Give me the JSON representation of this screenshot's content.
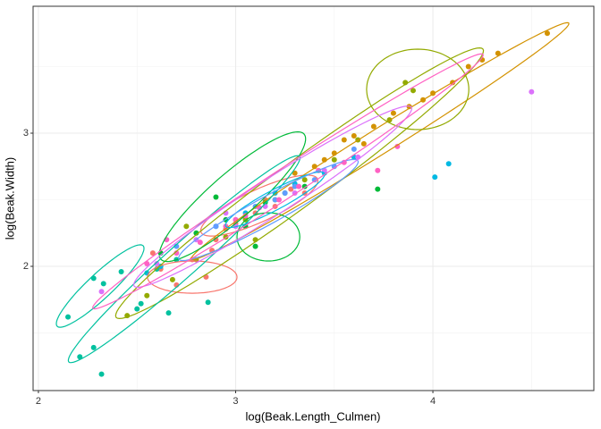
{
  "chart_data": {
    "type": "scatter",
    "x_label": "log(Beak.Length_Culmen)",
    "y_label": "log(Beak.Width)",
    "xlim": [
      1.973,
      4.816
    ],
    "ylim": [
      1.067,
      3.953
    ],
    "xticks": [
      2,
      3,
      4
    ],
    "yticks": [
      2,
      3
    ],
    "grid": true,
    "series": [
      {
        "color": "#F8766D",
        "x": [
          2.62,
          2.7,
          2.78,
          2.85,
          2.9,
          2.95,
          3.0,
          3.05,
          3.1,
          3.15,
          3.2,
          3.28,
          2.58,
          2.88,
          3.35
        ],
        "y": [
          1.98,
          1.86,
          2.05,
          1.92,
          2.2,
          2.28,
          2.32,
          2.36,
          2.4,
          2.5,
          2.45,
          2.58,
          2.1,
          2.12,
          2.55
        ],
        "ellipses": [
          {
            "center": [
              2.78,
              1.919
            ],
            "u": [
              0.227,
              0
            ],
            "v": [
              0,
              0.121
            ]
          },
          {
            "center": [
              3.12,
              2.456
            ],
            "u": [
              0.295,
              0.201
            ],
            "v": [
              0.034,
              -0.109
            ]
          }
        ]
      },
      {
        "color": "#D39200",
        "x": [
          3.3,
          3.4,
          3.5,
          3.55,
          3.6,
          3.7,
          3.8,
          3.88,
          3.95,
          4.0,
          4.1,
          4.18,
          4.25,
          4.33,
          4.58,
          3.65,
          3.45
        ],
        "y": [
          2.7,
          2.75,
          2.85,
          2.95,
          2.98,
          3.05,
          3.15,
          3.2,
          3.25,
          3.3,
          3.38,
          3.5,
          3.55,
          3.6,
          3.75,
          2.92,
          2.8
        ],
        "ellipses": [
          {
            "center": [
              3.732,
              2.94
            ],
            "u": [
              0.957,
              0.886
            ],
            "v": [
              0.034,
              -0.08
            ]
          }
        ]
      },
      {
        "color": "#93AA00",
        "x": [
          2.45,
          2.55,
          2.68,
          2.8,
          2.95,
          3.05,
          3.2,
          3.35,
          3.5,
          3.62,
          3.78,
          3.86,
          3.9,
          2.75,
          3.1
        ],
        "y": [
          1.63,
          1.78,
          1.9,
          2.05,
          2.22,
          2.35,
          2.5,
          2.65,
          2.8,
          2.95,
          3.1,
          3.38,
          3.32,
          2.3,
          2.2
        ],
        "ellipses": [
          {
            "center": [
              3.324,
              2.624
            ],
            "u": [
              0.93,
              1.007
            ],
            "v": [
              0.067,
              -0.136
            ]
          },
          {
            "center": [
              3.923,
              3.329
            ],
            "u": [
              0.259,
              0
            ],
            "v": [
              0,
              0.302
            ]
          }
        ]
      },
      {
        "color": "#00BA38",
        "x": [
          2.62,
          2.8,
          2.95,
          3.05,
          3.15,
          3.25,
          3.35,
          3.72,
          2.9,
          3.1
        ],
        "y": [
          2.1,
          2.25,
          2.35,
          2.3,
          2.48,
          2.55,
          2.6,
          2.58,
          2.52,
          2.15
        ],
        "ellipses": [
          {
            "center": [
              2.984,
              2.523
            ],
            "u": [
              0.363,
              0.47
            ],
            "v": [
              0.075,
              -0.127
            ]
          },
          {
            "center": [
              3.166,
              2.221
            ],
            "u": [
              0.159,
              0
            ],
            "v": [
              0,
              0.181
            ]
          }
        ]
      },
      {
        "color": "#00C19F",
        "x": [
          2.15,
          2.28,
          2.33,
          2.28,
          2.21,
          2.32,
          2.42,
          2.52,
          2.66,
          2.86,
          2.6,
          2.7,
          2.5
        ],
        "y": [
          1.62,
          1.91,
          1.87,
          1.39,
          1.32,
          1.19,
          1.96,
          1.72,
          1.65,
          1.73,
          1.98,
          2.05,
          1.68
        ],
        "ellipses": [
          {
            "center": [
              2.739,
              2.054
            ],
            "u": [
              0.585,
              0.772
            ],
            "v": [
              0.054,
              -0.09
            ]
          },
          {
            "center": [
              2.313,
              1.852
            ],
            "u": [
              0.218,
              0.302
            ],
            "v": [
              0.043,
              -0.068
            ]
          }
        ]
      },
      {
        "color": "#00B9E3",
        "x": [
          2.62,
          2.55,
          3.05,
          3.2,
          3.3,
          3.45,
          3.6,
          4.01,
          4.08,
          2.9
        ],
        "y": [
          2.0,
          1.95,
          2.4,
          2.55,
          2.62,
          2.7,
          2.82,
          2.67,
          2.77,
          2.3
        ],
        "ellipses": [
          {
            "center": [
              3.2,
              2.5
            ],
            "u": [
              0.25,
              0.2
            ],
            "v": [
              0.03,
              -0.06
            ]
          }
        ]
      },
      {
        "color": "#619CFF",
        "x": [
          2.9,
          3.0,
          3.1,
          3.2,
          3.3,
          3.4,
          3.5,
          3.6,
          2.7,
          3.25
        ],
        "y": [
          2.3,
          2.35,
          2.45,
          2.5,
          2.6,
          2.65,
          2.75,
          2.88,
          2.15,
          2.55
        ],
        "ellipses": [
          {
            "center": [
              3.166,
              2.423
            ],
            "u": [
              0.454,
              0.369
            ],
            "v": [
              0.033,
              -0.089
            ]
          }
        ]
      },
      {
        "color": "#DB72FB",
        "x": [
          2.32,
          2.6,
          2.8,
          3.0,
          3.15,
          3.3,
          3.45,
          3.62,
          4.5,
          2.95
        ],
        "y": [
          1.81,
          2.02,
          2.2,
          2.3,
          2.45,
          2.55,
          2.72,
          2.82,
          3.31,
          2.4
        ],
        "ellipses": [
          {
            "center": [
              3.188,
              2.523
            ],
            "u": [
              0.703,
              0.671
            ],
            "v": [
              0.049,
              -0.113
            ]
          }
        ]
      },
      {
        "color": "#FF61C3",
        "x": [
          2.55,
          2.7,
          2.82,
          2.95,
          3.05,
          3.12,
          3.22,
          3.32,
          3.42,
          3.55,
          3.72,
          3.82,
          2.65,
          3.0
        ],
        "y": [
          2.02,
          2.1,
          2.18,
          2.3,
          2.38,
          2.44,
          2.5,
          2.6,
          2.72,
          2.78,
          2.72,
          2.9,
          2.2,
          2.35
        ],
        "ellipses": [
          {
            "center": [
              3.265,
              2.638
            ],
            "u": [
              0.989,
              0.953
            ],
            "v": [
              0.04,
              -0.09
            ]
          }
        ]
      }
    ]
  }
}
